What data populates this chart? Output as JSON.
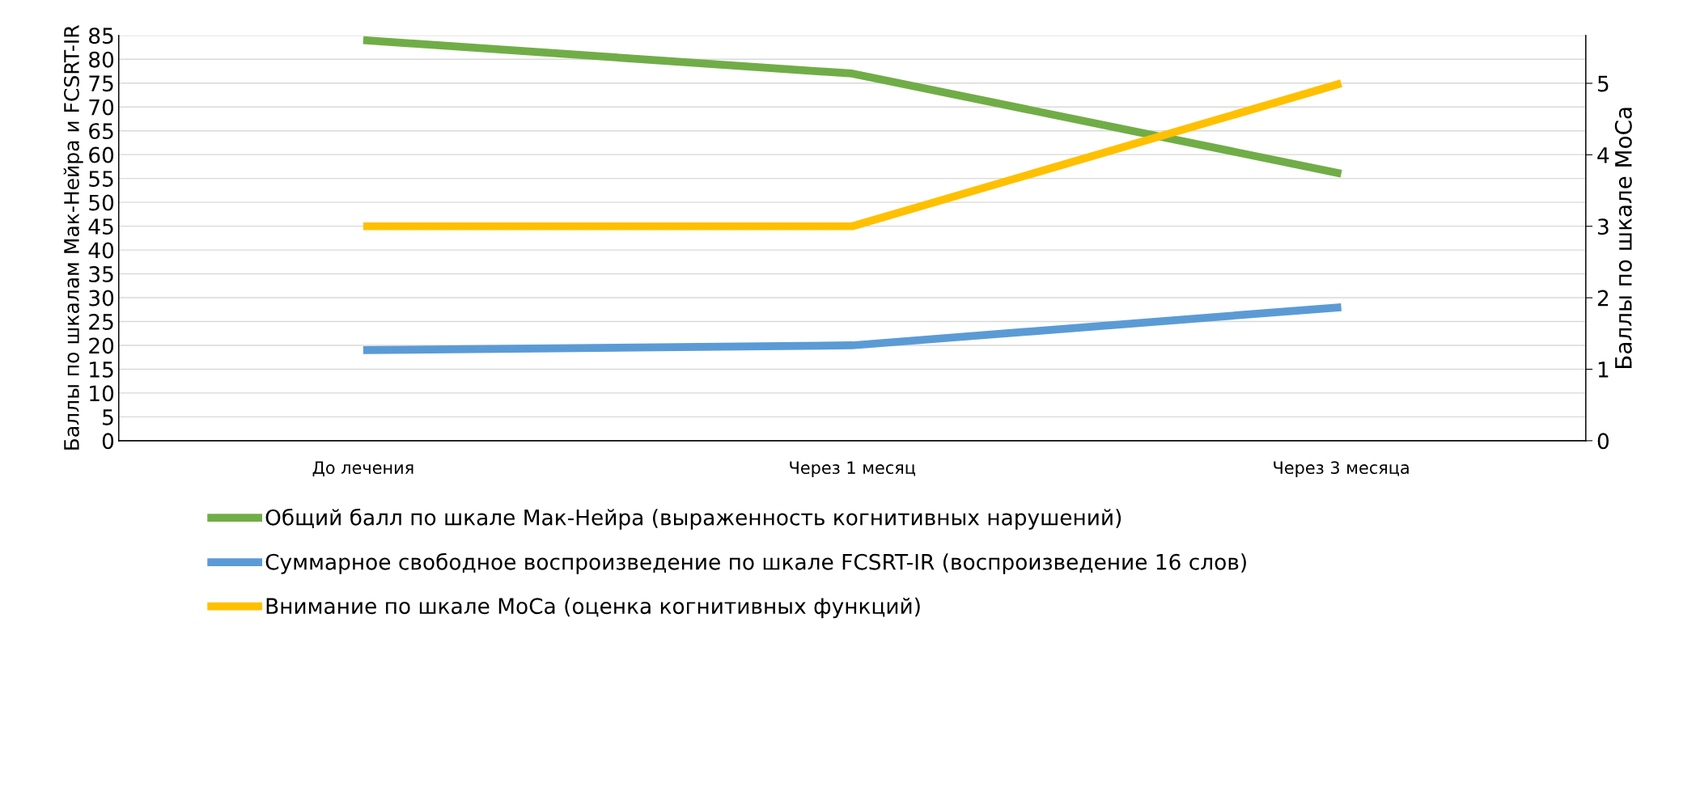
{
  "chart_data": {
    "type": "line",
    "categories": [
      "До лечения",
      "Через 1 месяц",
      "Через 3 месяца"
    ],
    "ylabel": "Баллы по шкалам Мак-Нейра и FCSRT-IR",
    "y2label": "Баллы по шкале MoCa",
    "series": [
      {
        "name": "Общий балл по шкале Мак-Нейра (выраженность когнитивных нарушений)",
        "color": "#70ad47",
        "values": [
          84,
          77,
          56
        ]
      },
      {
        "name": "Суммарное свободное воспроизведение по шкале FCSRT-IR (воспроизведение 16 слов)",
        "color": "#5b9bd5",
        "values": [
          19,
          20,
          28
        ]
      },
      {
        "name": "Внимание по шкале MoCa (оценка когнитивных функций)",
        "color": "#ffc000",
        "values": [
          3,
          3,
          5
        ],
        "axis": "y2"
      }
    ],
    "ylim": [
      0,
      85
    ],
    "yticks": [
      0,
      5,
      10,
      15,
      20,
      25,
      30,
      35,
      40,
      45,
      50,
      55,
      60,
      65,
      70,
      75,
      80,
      85
    ],
    "y2lim": [
      0,
      5.67
    ],
    "y2ticks": [
      0,
      1,
      2,
      3,
      4,
      5
    ],
    "grid": "y",
    "legend": "bottom",
    "marker": "none",
    "line_style": "solid"
  }
}
